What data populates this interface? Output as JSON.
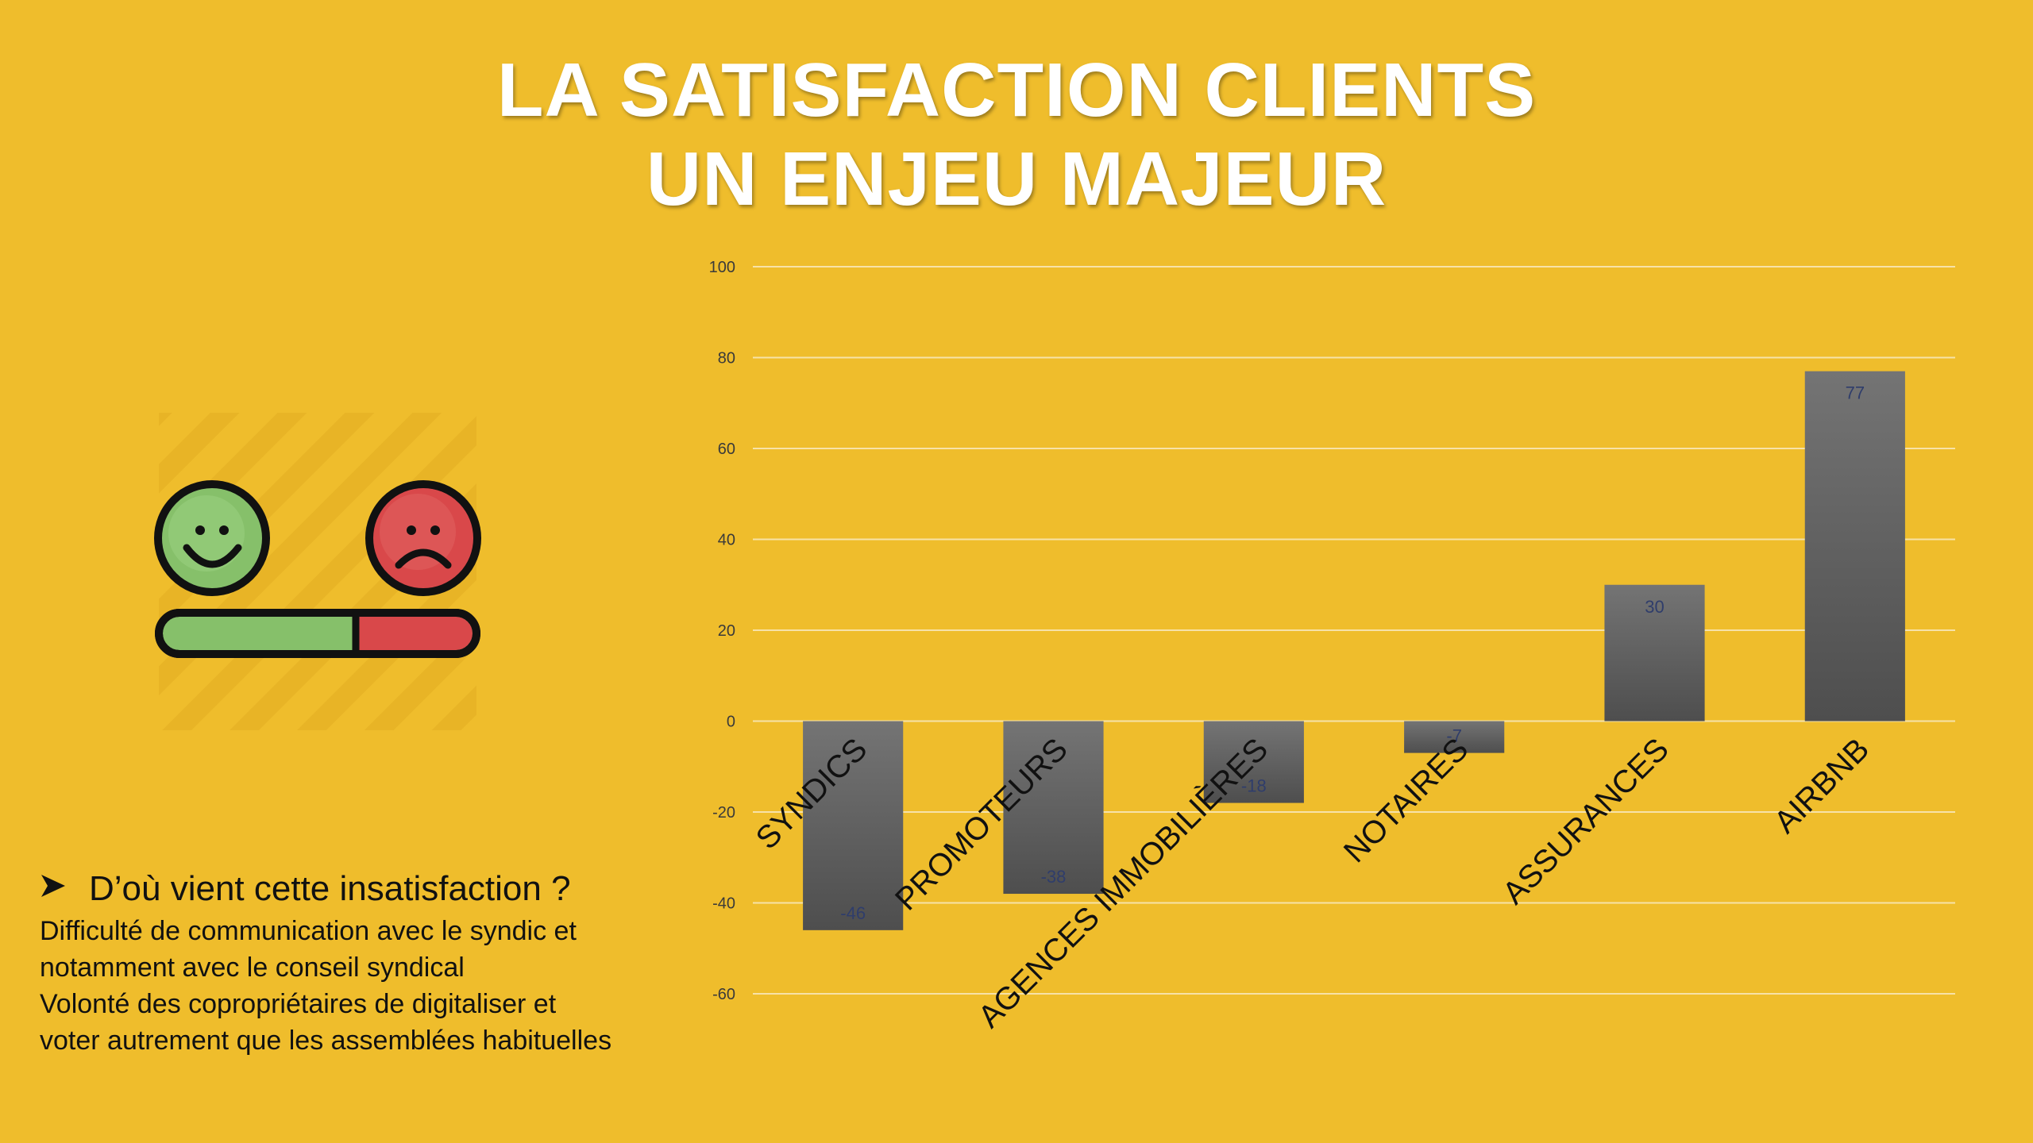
{
  "title": {
    "line1": "LA SATISFACTION CLIENTS",
    "line2": "UN ENJEU MAJEUR"
  },
  "illustration": {
    "icon": "satisfaction-meter-icon",
    "happy_color": "#86C06A",
    "sad_color": "#D9484A"
  },
  "bullet": {
    "icon": "arrowhead-bullet-icon",
    "heading": "D’où vient cette insatisfaction ?",
    "lines": [
      "Difficulté de communication avec le syndic et",
      "notamment avec le conseil syndical",
      "Volonté des copropriétaires de digitaliser et",
      "voter autrement que les assemblées habituelles"
    ]
  },
  "chart_data": {
    "type": "bar",
    "title": "",
    "xlabel": "",
    "ylabel": "",
    "categories": [
      "SYNDICS",
      "PROMOTEURS",
      "AGENCES IMMOBILIÈRES",
      "NOTAIRES",
      "ASSURANCES",
      "AIRBNB"
    ],
    "values": [
      -46,
      -38,
      -18,
      -7,
      30,
      77
    ],
    "data_labels": [
      "-46",
      "-38",
      "-18",
      "-7",
      "30",
      "77"
    ],
    "ylim": [
      -60,
      100
    ],
    "yticks": [
      100,
      80,
      60,
      40,
      20,
      0,
      -20,
      -40,
      -60
    ],
    "grid": true,
    "legend": "none",
    "bar_color": "#5a5a5a",
    "label_color": "#2f3d6b"
  }
}
